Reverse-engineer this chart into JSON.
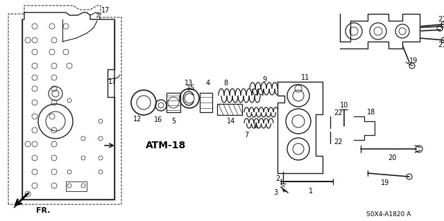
{
  "bg_color": "#ffffff",
  "line_color": "#1a1a1a",
  "diagram_code": "S0X4-A1820 A",
  "font_size_labels": 7,
  "font_size_atm": 10,
  "font_size_code": 6.5,
  "figsize": [
    6.4,
    3.19
  ],
  "dpi": 100
}
